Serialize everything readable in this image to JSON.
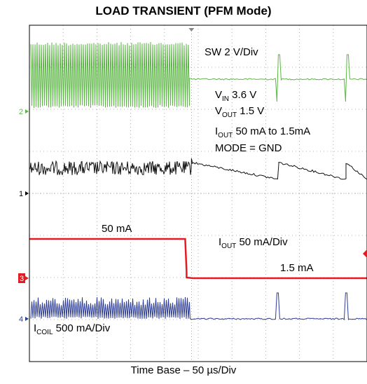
{
  "chart_data": {
    "type": "line",
    "title": "LOAD TRANSIENT (PFM Mode)",
    "xlabel": "Time Base – 50 µs/Div",
    "xlim": [
      0,
      500
    ],
    "grid": true,
    "trigger_time_us": 240,
    "channel_markers": [
      {
        "label": "2",
        "color": "#5ab543"
      },
      {
        "label": "1",
        "color": "#000000"
      },
      {
        "label": "3",
        "color": "#e31b23"
      },
      {
        "label": "4",
        "color": "#2e3d94"
      }
    ],
    "series": [
      {
        "color": "#5ab543",
        "description_label": "SW 2 V/Div"
      },
      {
        "color": "#111111"
      },
      {
        "color": "#e31b23",
        "before_load": "50 mA",
        "after_load": "1.5 mA"
      },
      {
        "color": "#2e3d94"
      }
    ],
    "annotations": {
      "sw": "SW 2 V/Div",
      "vin": {
        "main": "V",
        "sub": "IN",
        "value": " 3.6 V"
      },
      "vout": {
        "main": "V",
        "sub": "OUT",
        "value": " 1.5 V"
      },
      "iout": {
        "main": "I",
        "sub": "OUT",
        "value": " 50 mA to 1.5mA"
      },
      "mode": "MODE = GND",
      "iout_scale": {
        "main": "I",
        "sub": "OUT",
        "value": " 50 mA/Div"
      },
      "load_high": "50 mA",
      "load_low": "1.5 mA",
      "icoil_scale": {
        "main": "I",
        "sub": "COIL",
        "value": " 500 mA/Div"
      }
    }
  }
}
